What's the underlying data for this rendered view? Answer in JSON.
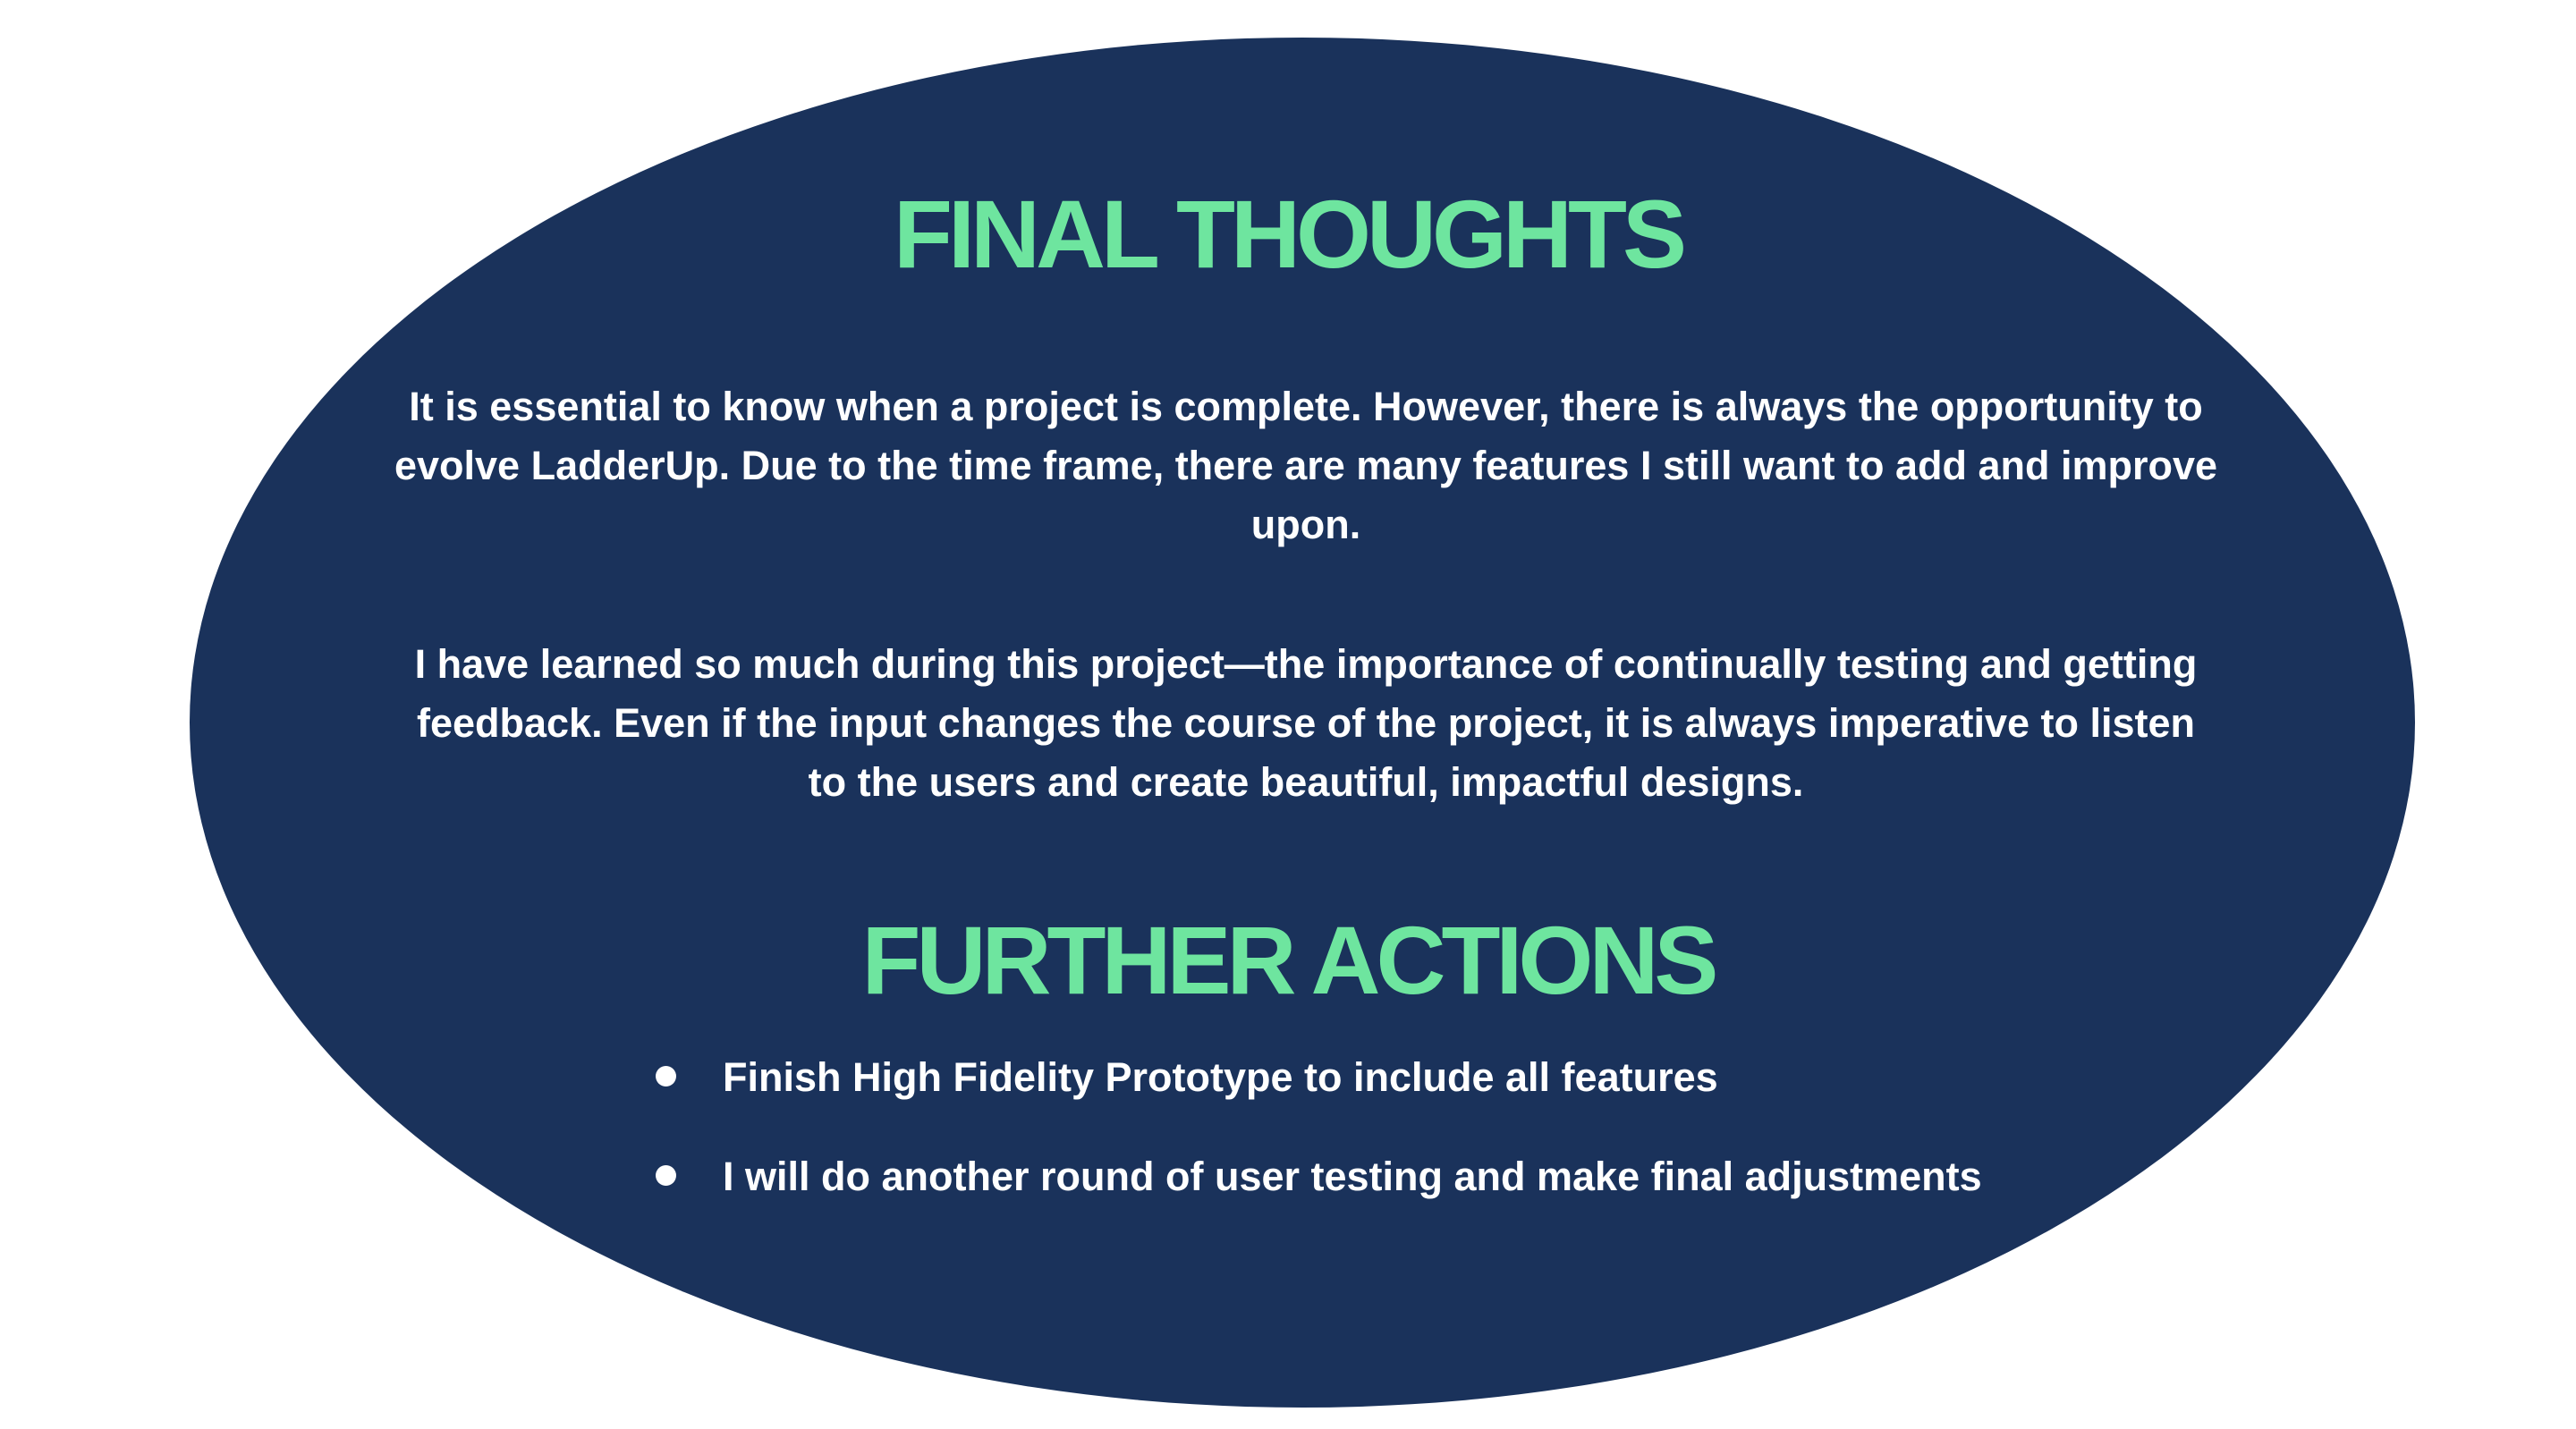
{
  "final_thoughts": {
    "title": "FINAL THOUGHTS",
    "paragraphs": [
      "It is essential to know when a project is complete. However, there is always the opportunity to evolve LadderUp. Due to the time frame, there are many features I still want to add and improve upon.",
      "I have learned so much during this project—the importance of continually testing and getting feedback. Even if the input changes the course of the project, it is always imperative to listen to the users and create beautiful, impactful designs."
    ]
  },
  "further_actions": {
    "title": "FURTHER ACTIONS",
    "items": [
      "Finish High Fidelity Prototype to include all features",
      "I will do another round of user testing and make final adjustments"
    ]
  },
  "colors": {
    "background": "#ffffff",
    "ellipse": "#1a325b",
    "heading_accent": "#6ee59f",
    "body_text": "#ffffff"
  }
}
